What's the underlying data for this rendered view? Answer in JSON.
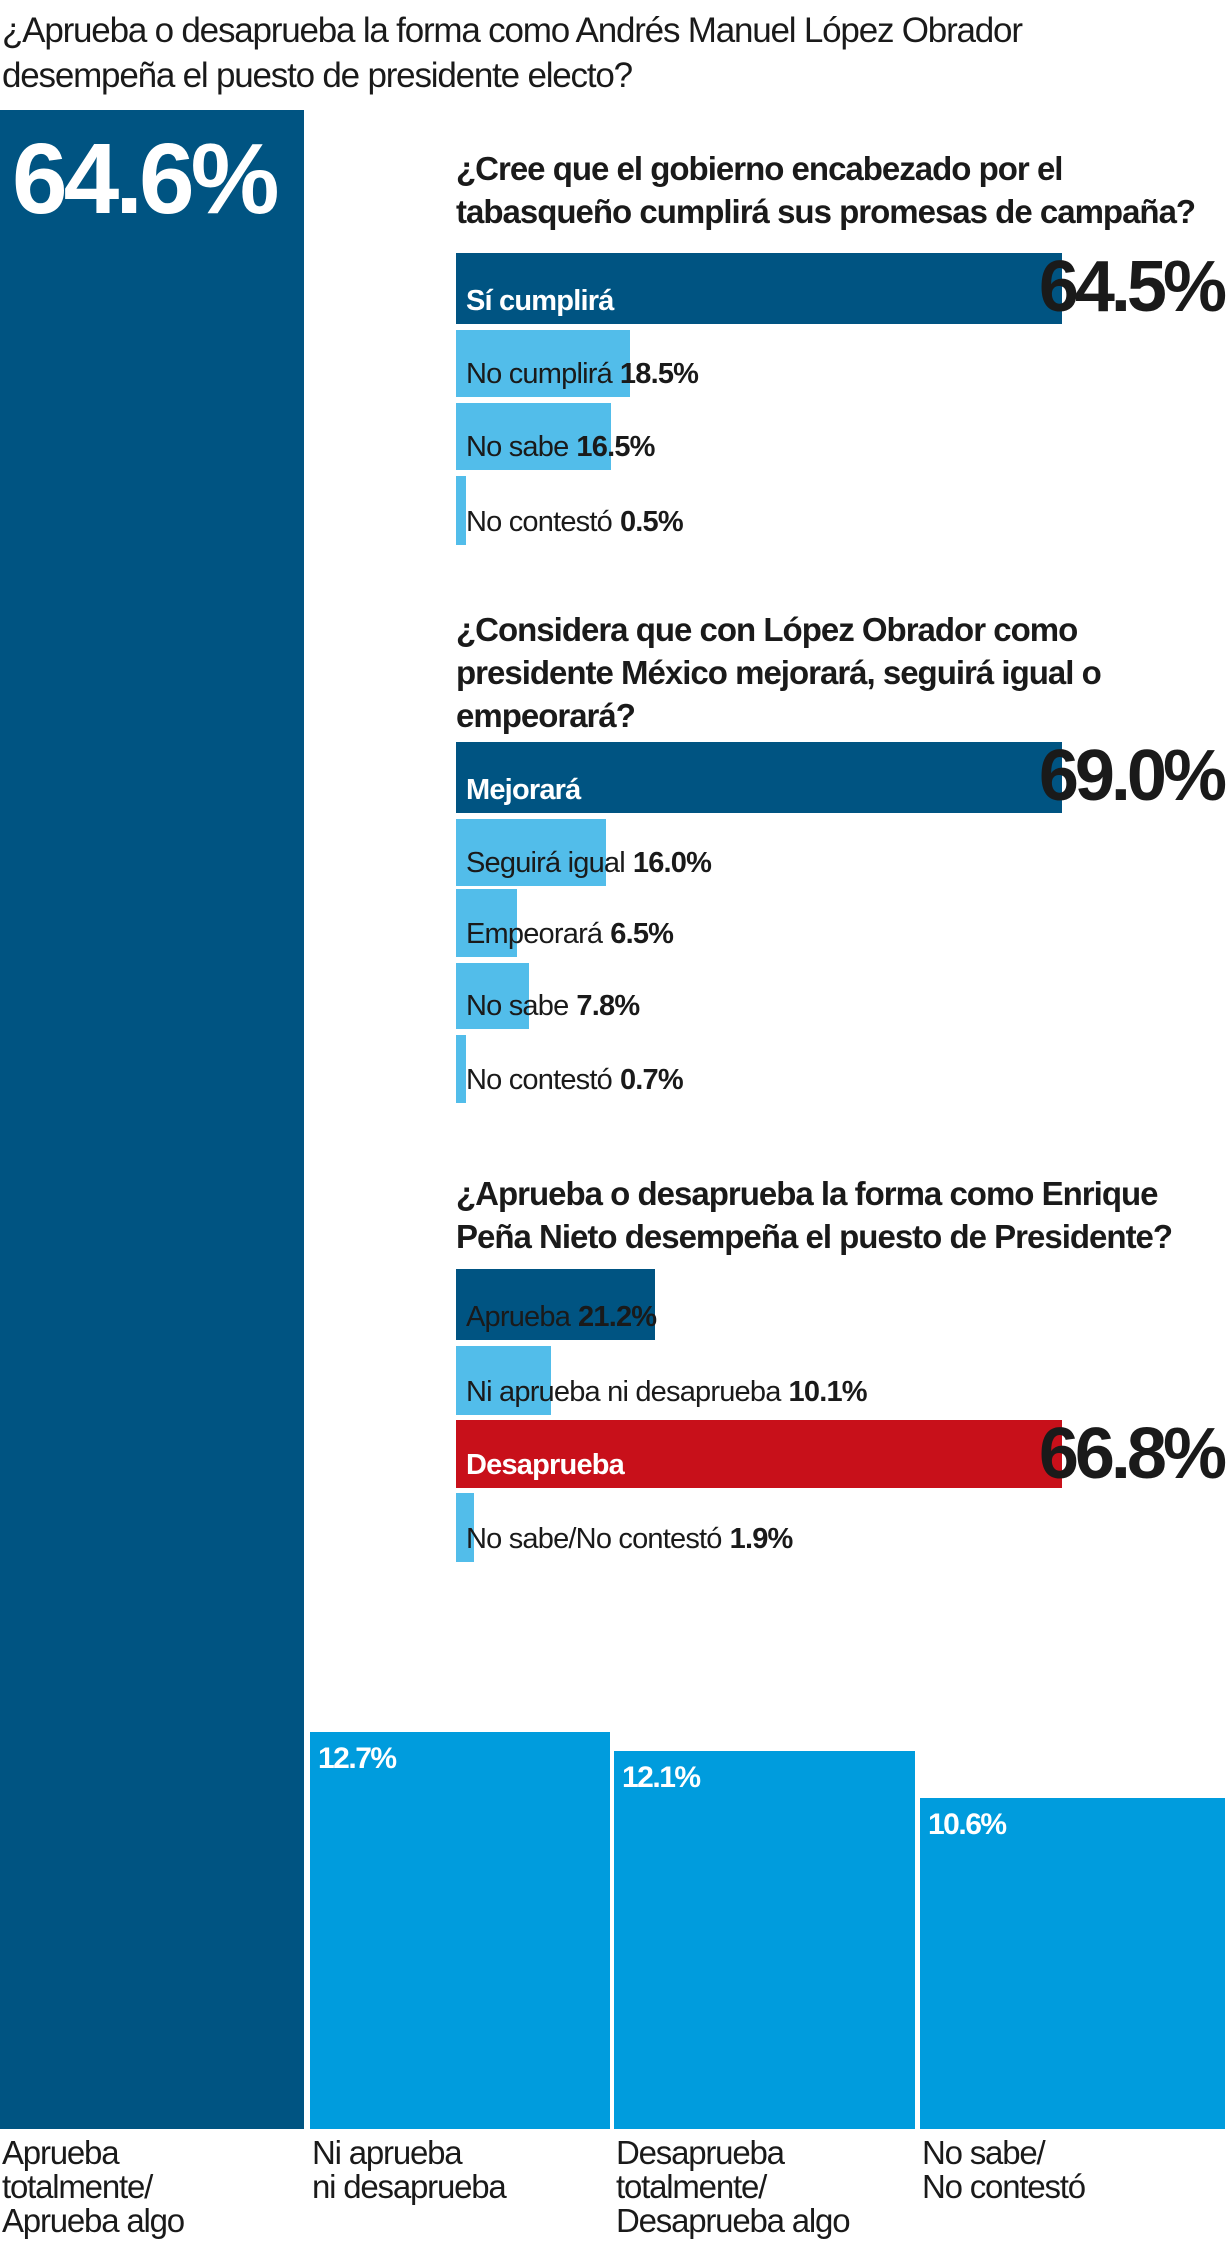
{
  "colors": {
    "dark": "#005482",
    "light": "#52bdea",
    "main_light": "#009cdd",
    "red": "#c8101a"
  },
  "chart_data": [
    {
      "type": "bar",
      "title": "¿Aprueba o desaprueba la forma como Andrés Manuel López Obrador desempeña el puesto de presidente electo?",
      "categories": [
        "Aprueba totalmente/ Aprueba algo",
        "Ni aprueba ni desaprueba",
        "Desaprueba totalmente/ Desaprueba algo",
        "No sabe/ No contestó"
      ],
      "values": [
        64.6,
        12.7,
        12.1,
        10.6
      ],
      "value_labels": [
        "64.6%",
        "12.7%",
        "12.1%",
        "10.6%"
      ],
      "label_lines": [
        [
          "Aprueba",
          "totalmente/",
          "Aprueba algo"
        ],
        [
          "Ni aprueba",
          "ni desaprueba"
        ],
        [
          "Desaprueba",
          "totalmente/",
          "Desaprueba algo"
        ],
        [
          "No sabe/",
          "No contestó"
        ]
      ],
      "ylim": [
        0,
        64.6
      ]
    },
    {
      "type": "bar",
      "orientation": "horizontal",
      "title": "¿Cree que el gobierno encabezado por el tabasqueño cumplirá sus promesas de campaña?",
      "bars": [
        {
          "label": "Sí cumplirá",
          "value": 64.5,
          "text": "64.5%",
          "color": "dark",
          "major": true
        },
        {
          "label": "No cumplirá",
          "value": 18.5,
          "text": "18.5%",
          "color": "light"
        },
        {
          "label": "No sabe",
          "value": 16.5,
          "text": "16.5%",
          "color": "light"
        },
        {
          "label": "No contestó",
          "value": 0.5,
          "text": "0.5%",
          "color": "light"
        }
      ]
    },
    {
      "type": "bar",
      "orientation": "horizontal",
      "title": "¿Considera que con López Obrador como presidente México mejorará, seguirá igual o empeorará?",
      "bars": [
        {
          "label": "Mejorará",
          "value": 69.0,
          "text": "69.0%",
          "color": "dark",
          "major": true
        },
        {
          "label": "Seguirá igual",
          "value": 16.0,
          "text": "16.0%",
          "color": "light"
        },
        {
          "label": "Empeorará",
          "value": 6.5,
          "text": "6.5%",
          "color": "light"
        },
        {
          "label": "No sabe",
          "value": 7.8,
          "text": "7.8%",
          "color": "light"
        },
        {
          "label": "No contestó",
          "value": 0.7,
          "text": "0.7%",
          "color": "light"
        }
      ]
    },
    {
      "type": "bar",
      "orientation": "horizontal",
      "title": "¿Aprueba o desaprueba la forma como Enrique Peña Nieto desempeña el puesto de Presidente?",
      "bars": [
        {
          "label": "Aprueba",
          "value": 21.2,
          "text": "21.2%",
          "color": "dark"
        },
        {
          "label": "Ni aprueba ni desaprueba",
          "value": 10.1,
          "text": "10.1%",
          "color": "light"
        },
        {
          "label": "Desaprueba",
          "value": 66.8,
          "text": "66.8%",
          "color": "red",
          "major": true
        },
        {
          "label": "No sabe/No contestó",
          "value": 1.9,
          "text": "1.9%",
          "color": "light"
        }
      ]
    }
  ]
}
